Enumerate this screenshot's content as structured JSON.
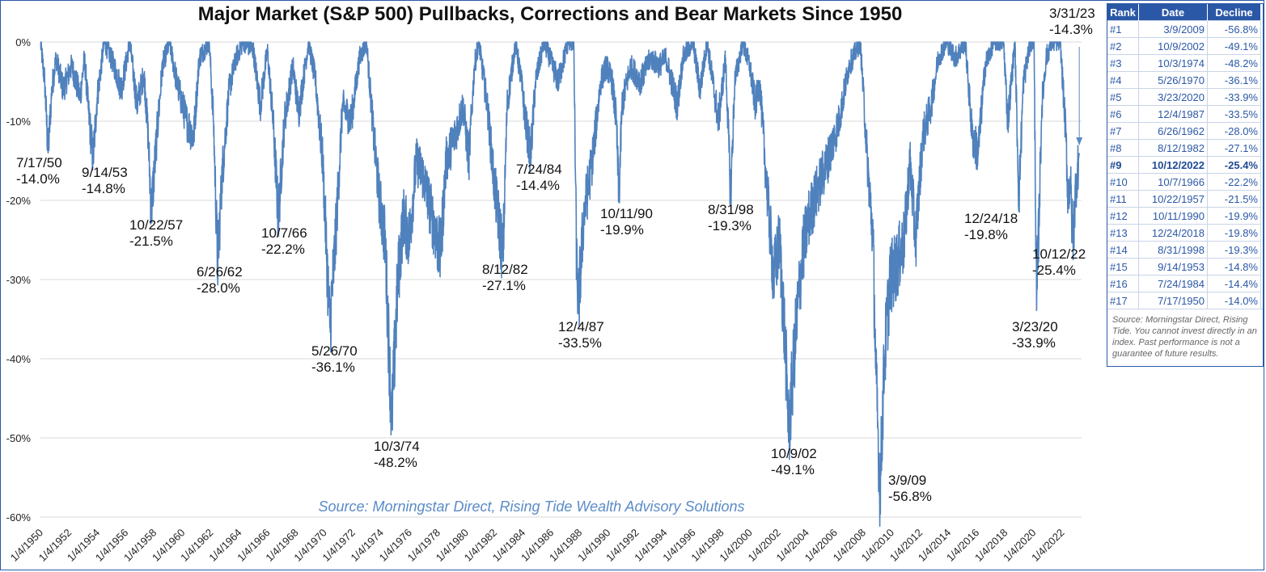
{
  "title": "Major Market (S&P 500) Pullbacks, Corrections and Bear Markets Since 1950",
  "source_text": "Source: Morningstar Direct, Rising Tide Wealth Advisory Solutions",
  "colors": {
    "line": "#4f81bd",
    "grid": "#d9d9d9",
    "table_header": "#2b58a6"
  },
  "chart_data": {
    "type": "line",
    "title": "Major Market (S&P 500) Pullbacks, Corrections and Bear Markets Since 1950",
    "y_tick_labels": [
      "0%",
      "-10%",
      "-20%",
      "-30%",
      "-40%",
      "-50%",
      "-60%"
    ],
    "x_tick_labels": [
      "1/4/1950",
      "1/4/1952",
      "1/4/1954",
      "1/4/1956",
      "1/4/1958",
      "1/4/1960",
      "1/4/1962",
      "1/4/1964",
      "1/4/1966",
      "1/4/1968",
      "1/4/1970",
      "1/4/1972",
      "1/4/1974",
      "1/4/1976",
      "1/4/1978",
      "1/4/1980",
      "1/4/1982",
      "1/4/1984",
      "1/4/1986",
      "1/4/1988",
      "1/4/1990",
      "1/4/1992",
      "1/4/1994",
      "1/4/1996",
      "1/4/1998",
      "1/4/2000",
      "1/4/2002",
      "1/4/2004",
      "1/4/2006",
      "1/4/2008",
      "1/4/2010",
      "1/4/2012",
      "1/4/2014",
      "1/4/2016",
      "1/4/2018",
      "1/4/2020",
      "1/4/2022"
    ],
    "ylim": [
      -60,
      0
    ],
    "xlim": [
      1950.0,
      2023.4
    ],
    "grid": true,
    "series": [
      {
        "points": [
          [
            1950.0,
            0
          ],
          [
            1950.3,
            -5
          ],
          [
            1950.54,
            -14.0
          ],
          [
            1950.8,
            -6
          ],
          [
            1951.1,
            -2
          ],
          [
            1951.6,
            -6
          ],
          [
            1952.2,
            -3
          ],
          [
            1952.8,
            -7
          ],
          [
            1953.1,
            -2
          ],
          [
            1953.4,
            -9
          ],
          [
            1953.71,
            -14.8
          ],
          [
            1954.0,
            -7
          ],
          [
            1954.5,
            0
          ],
          [
            1955.2,
            -3
          ],
          [
            1955.7,
            -6
          ],
          [
            1956.3,
            0
          ],
          [
            1956.8,
            -8
          ],
          [
            1957.3,
            -4
          ],
          [
            1957.6,
            -12
          ],
          [
            1957.81,
            -21.5
          ],
          [
            1958.2,
            -12
          ],
          [
            1958.6,
            -3
          ],
          [
            1959.1,
            0
          ],
          [
            1959.6,
            -5
          ],
          [
            1960.3,
            -10
          ],
          [
            1960.8,
            -12
          ],
          [
            1961.2,
            -2
          ],
          [
            1961.9,
            0
          ],
          [
            1962.2,
            -10
          ],
          [
            1962.49,
            -28.0
          ],
          [
            1962.8,
            -17
          ],
          [
            1963.3,
            -6
          ],
          [
            1963.8,
            -2
          ],
          [
            1964.3,
            0
          ],
          [
            1965.0,
            -1
          ],
          [
            1965.5,
            -8
          ],
          [
            1966.0,
            -1
          ],
          [
            1966.4,
            -10
          ],
          [
            1966.77,
            -22.2
          ],
          [
            1967.2,
            -10
          ],
          [
            1967.8,
            -3
          ],
          [
            1968.2,
            -9
          ],
          [
            1968.9,
            0
          ],
          [
            1969.4,
            -5
          ],
          [
            1969.9,
            -15
          ],
          [
            1970.4,
            -36.1
          ],
          [
            1970.8,
            -25
          ],
          [
            1971.3,
            -8
          ],
          [
            1971.9,
            -10
          ],
          [
            1972.5,
            -2
          ],
          [
            1972.99,
            0
          ],
          [
            1973.5,
            -12
          ],
          [
            1973.9,
            -20
          ],
          [
            1974.3,
            -25
          ],
          [
            1974.76,
            -48.2
          ],
          [
            1975.2,
            -30
          ],
          [
            1975.6,
            -22
          ],
          [
            1976.0,
            -25
          ],
          [
            1976.5,
            -15
          ],
          [
            1977.0,
            -17
          ],
          [
            1977.6,
            -22
          ],
          [
            1978.2,
            -27
          ],
          [
            1978.6,
            -15
          ],
          [
            1979.2,
            -12
          ],
          [
            1979.8,
            -8
          ],
          [
            1980.2,
            -15
          ],
          [
            1980.6,
            -3
          ],
          [
            1980.9,
            0
          ],
          [
            1981.5,
            -8
          ],
          [
            1982.0,
            -18
          ],
          [
            1982.61,
            -27.1
          ],
          [
            1982.9,
            -8
          ],
          [
            1983.5,
            0
          ],
          [
            1983.9,
            -5
          ],
          [
            1984.2,
            -10
          ],
          [
            1984.56,
            -14.4
          ],
          [
            1984.9,
            -5
          ],
          [
            1985.5,
            0
          ],
          [
            1986.5,
            -5
          ],
          [
            1987.2,
            0
          ],
          [
            1987.6,
            0
          ],
          [
            1987.8,
            -28
          ],
          [
            1987.93,
            -33.5
          ],
          [
            1988.3,
            -22
          ],
          [
            1988.9,
            -15
          ],
          [
            1989.5,
            -5
          ],
          [
            1989.9,
            -3
          ],
          [
            1990.3,
            -5
          ],
          [
            1990.6,
            -10
          ],
          [
            1990.78,
            -19.9
          ],
          [
            1991.0,
            -8
          ],
          [
            1991.6,
            -3
          ],
          [
            1992.3,
            -5
          ],
          [
            1993.0,
            -2
          ],
          [
            1993.6,
            -3
          ],
          [
            1994.1,
            -2
          ],
          [
            1994.9,
            -8
          ],
          [
            1995.3,
            -2
          ],
          [
            1996.0,
            0
          ],
          [
            1996.5,
            -6
          ],
          [
            1997.0,
            0
          ],
          [
            1997.8,
            -10
          ],
          [
            1998.3,
            -2
          ],
          [
            1998.66,
            -19.3
          ],
          [
            1998.95,
            -5
          ],
          [
            1999.5,
            0
          ],
          [
            2000.0,
            -3
          ],
          [
            2000.4,
            -8
          ],
          [
            2000.7,
            -5
          ],
          [
            2001.2,
            -18
          ],
          [
            2001.7,
            -30
          ],
          [
            2002.1,
            -25
          ],
          [
            2002.5,
            -38
          ],
          [
            2002.77,
            -49.1
          ],
          [
            2003.2,
            -38
          ],
          [
            2003.7,
            -27
          ],
          [
            2004.2,
            -22
          ],
          [
            2004.9,
            -18
          ],
          [
            2005.5,
            -15
          ],
          [
            2006.3,
            -10
          ],
          [
            2007.0,
            -3
          ],
          [
            2007.8,
            0
          ],
          [
            2008.3,
            -15
          ],
          [
            2008.7,
            -25
          ],
          [
            2008.9,
            -42
          ],
          [
            2009.19,
            -56.8
          ],
          [
            2009.5,
            -40
          ],
          [
            2009.9,
            -30
          ],
          [
            2010.4,
            -28
          ],
          [
            2010.9,
            -25
          ],
          [
            2011.3,
            -15
          ],
          [
            2011.7,
            -25
          ],
          [
            2012.2,
            -12
          ],
          [
            2012.8,
            -8
          ],
          [
            2013.3,
            -2
          ],
          [
            2013.9,
            0
          ],
          [
            2014.5,
            -2
          ],
          [
            2015.2,
            0
          ],
          [
            2015.7,
            -12
          ],
          [
            2016.1,
            -14
          ],
          [
            2016.6,
            -3
          ],
          [
            2017.2,
            0
          ],
          [
            2017.9,
            0
          ],
          [
            2018.2,
            -10
          ],
          [
            2018.7,
            0
          ],
          [
            2018.98,
            -19.8
          ],
          [
            2019.3,
            -5
          ],
          [
            2019.8,
            0
          ],
          [
            2020.05,
            0
          ],
          [
            2020.23,
            -33.9
          ],
          [
            2020.6,
            -8
          ],
          [
            2020.9,
            -2
          ],
          [
            2021.3,
            0
          ],
          [
            2021.9,
            0
          ],
          [
            2022.3,
            -12
          ],
          [
            2022.45,
            -20
          ],
          [
            2022.6,
            -17
          ],
          [
            2022.78,
            -25.4
          ],
          [
            2023.0,
            -18
          ],
          [
            2023.24,
            -14.3
          ]
        ]
      }
    ],
    "annotations": [
      {
        "date": "7/17/50",
        "value": "-14.0%"
      },
      {
        "date": "9/14/53",
        "value": "-14.8%"
      },
      {
        "date": "10/22/57",
        "value": "-21.5%"
      },
      {
        "date": "6/26/62",
        "value": "-28.0%"
      },
      {
        "date": "10/7/66",
        "value": "-22.2%"
      },
      {
        "date": "5/26/70",
        "value": "-36.1%"
      },
      {
        "date": "10/3/74",
        "value": "-48.2%"
      },
      {
        "date": "8/12/82",
        "value": "-27.1%"
      },
      {
        "date": "7/24/84",
        "value": "-14.4%"
      },
      {
        "date": "12/4/87",
        "value": "-33.5%"
      },
      {
        "date": "10/11/90",
        "value": "-19.9%"
      },
      {
        "date": "8/31/98",
        "value": "-19.3%"
      },
      {
        "date": "10/9/02",
        "value": "-49.1%"
      },
      {
        "date": "3/9/09",
        "value": "-56.8%"
      },
      {
        "date": "12/24/18",
        "value": "-19.8%"
      },
      {
        "date": "3/23/20",
        "value": "-33.9%"
      },
      {
        "date": "10/12/22",
        "value": "-25.4%"
      },
      {
        "date": "3/31/23",
        "value": "-14.3%"
      }
    ]
  },
  "rank_table": {
    "headers": [
      "Rank",
      "Date",
      "Decline"
    ],
    "rows": [
      {
        "rank": "#1",
        "date": "3/9/2009",
        "decline": "-56.8%"
      },
      {
        "rank": "#2",
        "date": "10/9/2002",
        "decline": "-49.1%"
      },
      {
        "rank": "#3",
        "date": "10/3/1974",
        "decline": "-48.2%"
      },
      {
        "rank": "#4",
        "date": "5/26/1970",
        "decline": "-36.1%"
      },
      {
        "rank": "#5",
        "date": "3/23/2020",
        "decline": "-33.9%"
      },
      {
        "rank": "#6",
        "date": "12/4/1987",
        "decline": "-33.5%"
      },
      {
        "rank": "#7",
        "date": "6/26/1962",
        "decline": "-28.0%"
      },
      {
        "rank": "#8",
        "date": "8/12/1982",
        "decline": "-27.1%"
      },
      {
        "rank": "#9",
        "date": "10/12/2022",
        "decline": "-25.4%",
        "highlight": true
      },
      {
        "rank": "#10",
        "date": "10/7/1966",
        "decline": "-22.2%"
      },
      {
        "rank": "#11",
        "date": "10/22/1957",
        "decline": "-21.5%"
      },
      {
        "rank": "#12",
        "date": "10/11/1990",
        "decline": "-19.9%"
      },
      {
        "rank": "#13",
        "date": "12/24/2018",
        "decline": "-19.8%"
      },
      {
        "rank": "#14",
        "date": "8/31/1998",
        "decline": "-19.3%"
      },
      {
        "rank": "#15",
        "date": "9/14/1953",
        "decline": "-14.8%"
      },
      {
        "rank": "#16",
        "date": "7/24/1984",
        "decline": "-14.4%"
      },
      {
        "rank": "#17",
        "date": "7/17/1950",
        "decline": "-14.0%"
      }
    ],
    "source_note": "Source: Morningstar Direct, Rising Tide. You cannot invest directly in an index. Past performance is not a guarantee of future results."
  }
}
